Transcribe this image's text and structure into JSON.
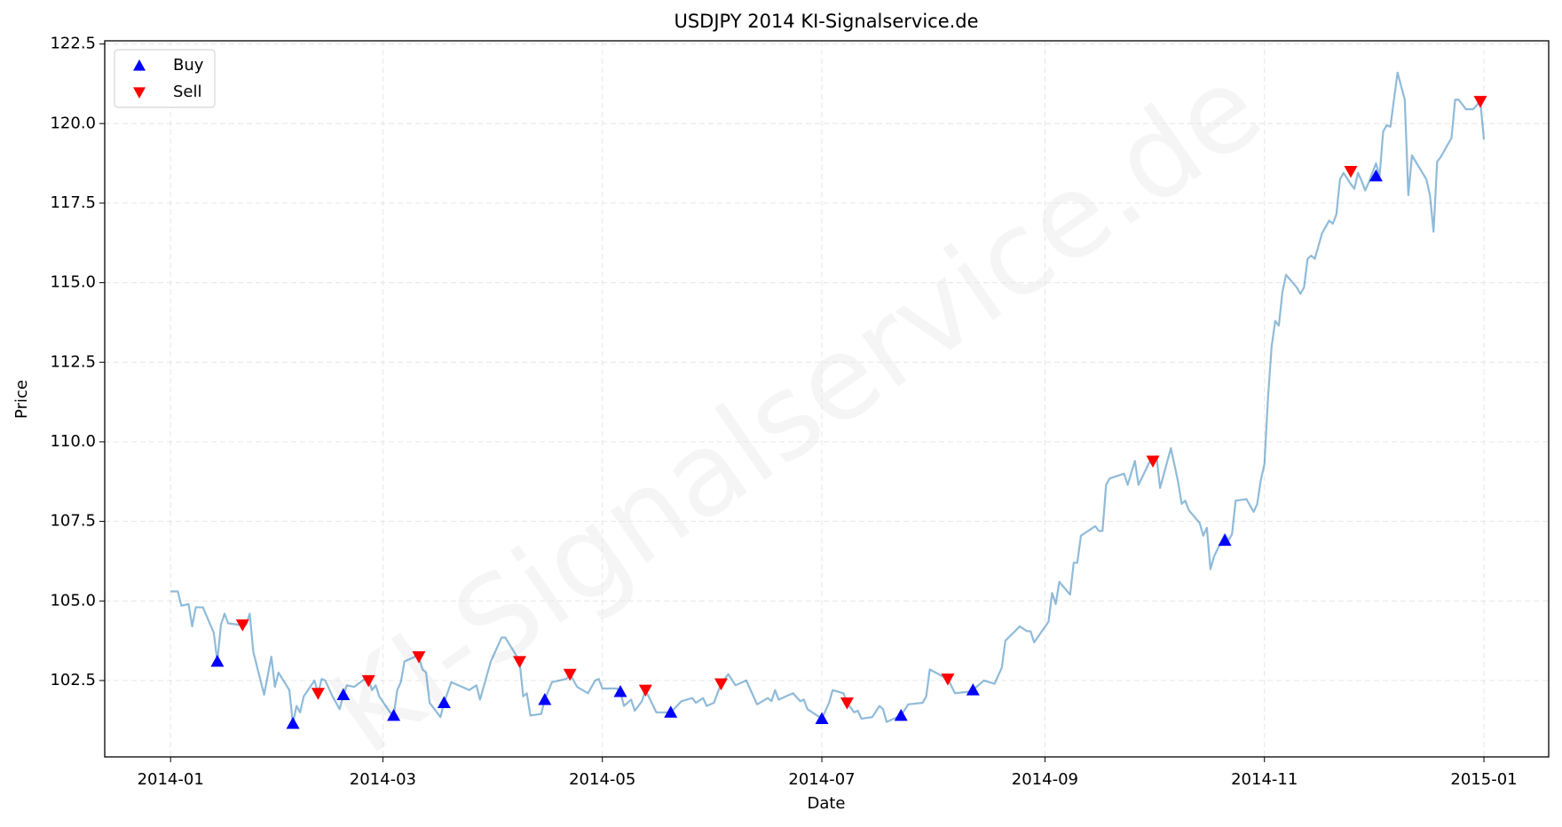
{
  "chart_data": {
    "type": "line",
    "title": "USDJPY 2014 KI-Signalservice.de",
    "xlabel": "Date",
    "ylabel": "Price",
    "watermark": "KI-Signalservice.de",
    "line": {
      "color": "#1f77b4",
      "alpha": 0.5,
      "x": [
        0,
        2,
        3,
        5,
        6,
        7,
        9,
        12,
        13,
        14,
        15,
        16,
        19,
        21,
        22,
        23,
        26,
        28,
        29,
        30,
        33,
        34,
        35,
        36,
        37,
        40,
        41,
        42,
        43,
        45,
        47,
        48,
        49,
        51,
        54,
        55,
        56,
        57,
        58,
        61,
        62,
        63,
        64,
        65,
        68,
        69,
        70,
        71,
        72,
        75,
        76,
        78,
        83,
        85,
        86,
        89,
        92,
        93,
        96,
        97,
        98,
        99,
        100,
        103,
        104,
        106,
        110,
        111,
        113,
        116,
        118,
        119,
        120,
        124,
        125,
        126,
        128,
        129,
        131,
        132,
        135,
        138,
        139,
        142,
        145,
        146,
        148,
        149,
        151,
        153,
        155,
        157,
        160,
        161,
        163,
        166,
        167,
        168,
        169,
        173,
        175,
        176,
        177,
        181,
        183,
        184,
        187,
        188,
        190,
        191,
        192,
        195,
        197,
        198,
        199,
        203,
        205,
        209,
        210,
        211,
        215,
        216,
        218,
        222,
        223,
        226,
        229,
        231,
        232,
        236,
        238,
        239,
        240,
        244,
        245,
        246,
        247,
        250,
        251,
        252,
        253,
        257,
        258,
        259,
        260,
        261,
        265,
        266,
        268,
        269,
        272,
        273,
        274,
        275,
        278,
        280,
        281,
        282,
        283,
        286,
        287,
        288,
        289,
        290,
        293,
        294,
        295,
        296,
        299,
        301,
        302,
        303,
        304,
        305,
        306,
        307,
        308,
        309,
        310,
        313,
        314,
        315,
        316,
        317,
        318,
        320,
        322,
        323,
        324,
        325,
        326,
        328,
        329,
        330,
        331,
        332,
        333,
        335,
        336,
        337,
        338,
        339,
        341,
        343,
        344,
        345,
        349,
        350,
        351,
        352,
        353,
        356,
        357,
        358,
        360,
        362,
        364,
        365
      ],
      "values": [
        105.3,
        105.3,
        104.85,
        104.9,
        104.2,
        104.8,
        104.8,
        104.0,
        103.1,
        104.25,
        104.6,
        104.3,
        104.25,
        104.25,
        104.6,
        103.4,
        102.05,
        103.25,
        102.3,
        102.75,
        102.2,
        101.15,
        101.7,
        101.5,
        102.0,
        102.5,
        102.1,
        102.55,
        102.5,
        102.0,
        101.6,
        102.05,
        102.35,
        102.3,
        102.55,
        102.5,
        102.2,
        102.35,
        102.0,
        101.5,
        101.4,
        102.2,
        102.45,
        103.1,
        103.25,
        103.25,
        102.85,
        102.75,
        101.8,
        101.35,
        101.8,
        102.45,
        102.2,
        102.35,
        101.9,
        103.1,
        103.85,
        103.85,
        103.3,
        103.1,
        102.0,
        102.1,
        101.4,
        101.45,
        101.9,
        102.45,
        102.55,
        102.7,
        102.3,
        102.1,
        102.5,
        102.55,
        102.25,
        102.25,
        102.15,
        101.7,
        101.9,
        101.55,
        101.85,
        102.2,
        101.5,
        101.5,
        101.5,
        101.85,
        101.95,
        101.8,
        101.95,
        101.7,
        101.8,
        102.4,
        102.7,
        102.35,
        102.5,
        102.25,
        101.75,
        101.95,
        101.85,
        102.2,
        101.9,
        102.1,
        101.85,
        101.9,
        101.6,
        101.3,
        101.8,
        102.2,
        102.1,
        101.8,
        101.5,
        101.55,
        101.3,
        101.35,
        101.7,
        101.6,
        101.2,
        101.4,
        101.75,
        101.8,
        102.0,
        102.85,
        102.6,
        102.55,
        102.1,
        102.15,
        102.2,
        102.5,
        102.4,
        102.9,
        103.75,
        104.2,
        104.05,
        104.05,
        103.7,
        104.35,
        105.25,
        104.9,
        105.6,
        105.2,
        106.2,
        106.2,
        107.05,
        107.35,
        107.2,
        107.2,
        108.65,
        108.85,
        109.0,
        108.65,
        109.4,
        108.65,
        109.35,
        109.45,
        109.55,
        108.55,
        109.8,
        108.75,
        108.05,
        108.15,
        107.85,
        107.45,
        107.05,
        107.3,
        106.0,
        106.4,
        107.1,
        106.9,
        107.1,
        108.15,
        108.2,
        107.8,
        108.05,
        108.8,
        109.3,
        111.4,
        113.0,
        113.8,
        113.65,
        114.7,
        115.25,
        114.85,
        114.65,
        114.85,
        115.75,
        115.85,
        115.75,
        116.55,
        116.95,
        116.85,
        117.15,
        118.25,
        118.45,
        118.1,
        117.95,
        118.45,
        118.2,
        117.9,
        118.15,
        118.75,
        118.35,
        119.75,
        119.95,
        119.9,
        121.6,
        120.75,
        117.75,
        119.0,
        118.25,
        117.75,
        116.6,
        118.8,
        118.95,
        119.55,
        120.75,
        120.75,
        120.45,
        120.45,
        120.7,
        119.5
      ]
    },
    "series": [
      {
        "name": "Buy",
        "color": "#0000ff",
        "marker": "^",
        "x": [
          13,
          34,
          48,
          62,
          76,
          104,
          125,
          139,
          181,
          203,
          223,
          293,
          335
        ],
        "values": [
          103.1,
          101.15,
          102.05,
          101.4,
          101.8,
          101.9,
          102.15,
          101.5,
          101.3,
          101.4,
          102.2,
          106.9,
          118.35
        ]
      },
      {
        "name": "Sell",
        "color": "#ff0000",
        "marker": "v",
        "x": [
          20,
          41,
          55,
          69,
          97,
          111,
          132,
          153,
          188,
          216,
          273,
          328,
          364
        ],
        "values": [
          104.25,
          102.1,
          102.5,
          103.25,
          103.1,
          102.7,
          102.2,
          102.4,
          101.8,
          102.55,
          109.4,
          118.5,
          120.7
        ]
      }
    ],
    "xlim": [
      -18.3,
      383
    ],
    "ylim": [
      100.1,
      122.6
    ],
    "xticks": [
      {
        "value": 0,
        "label": "2014-01"
      },
      {
        "value": 59,
        "label": "2014-03"
      },
      {
        "value": 120,
        "label": "2014-05"
      },
      {
        "value": 181,
        "label": "2014-07"
      },
      {
        "value": 243,
        "label": "2014-09"
      },
      {
        "value": 304,
        "label": "2014-11"
      },
      {
        "value": 365,
        "label": "2015-01"
      }
    ],
    "yticks": [
      102.5,
      {
        "value": 105,
        "label": "105.0"
      },
      107.5,
      {
        "value": 110,
        "label": "110.0"
      },
      112.5,
      {
        "value": 115,
        "label": "115.0"
      },
      117.5,
      {
        "value": 120,
        "label": "120.0"
      },
      122.5
    ],
    "grid": true,
    "legend": "upper left"
  }
}
